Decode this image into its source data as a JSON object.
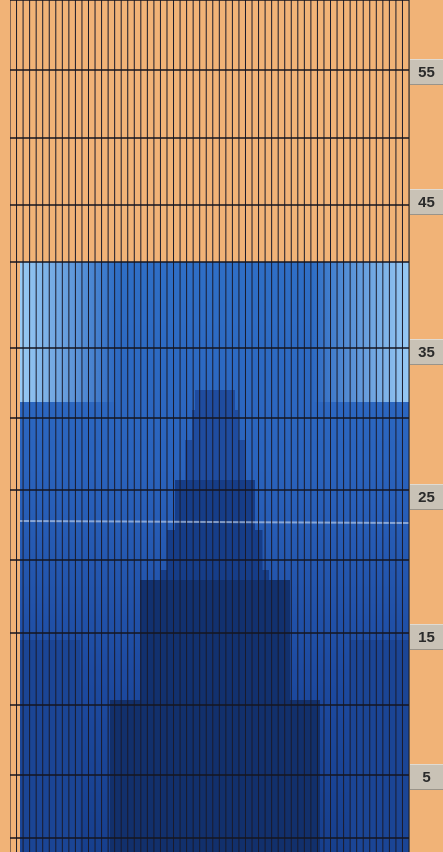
{
  "app": {
    "colors": {
      "background": "#f1b377",
      "grid_line": "#1a1a2a",
      "label_bg": "#c9c2b6",
      "blue_light": "#7fb2e8",
      "blue_mid": "#2b63be",
      "blue_dark": "#163a86",
      "blue_darkest": "#102c6b"
    },
    "corner_marker": {
      "icon": "square-marker-icon"
    }
  },
  "grid": {
    "columns": 61,
    "row_labels": [
      {
        "label": "55",
        "row": 55
      },
      {
        "label": "45",
        "row": 45
      },
      {
        "label": "35",
        "row": 35
      },
      {
        "label": "25",
        "row": 25
      },
      {
        "label": "15",
        "row": 15
      },
      {
        "label": "5",
        "row": 5
      }
    ]
  }
}
